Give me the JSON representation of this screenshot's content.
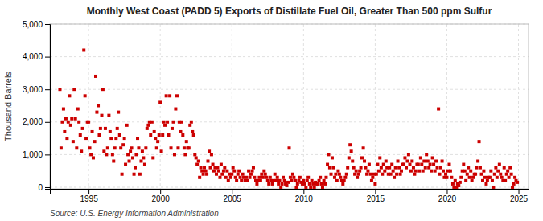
{
  "chart_data": {
    "type": "scatter",
    "title": "Monthly West Coast (PADD 5) Exports of Distillate Fuel Oil, Greater Than 500 ppm Sulfur",
    "ylabel": "Thousand Barrels",
    "annotations": [
      "Source: U.S. Energy Information Administration"
    ],
    "color": "#cc0000",
    "marker": "square",
    "grid": true,
    "xlim": [
      1992.3,
      2025.7
    ],
    "xticks": [
      1995,
      2000,
      2005,
      2010,
      2015,
      2020,
      2025
    ],
    "ylim": [
      -50,
      5000
    ],
    "yticks": [
      0,
      {
        "value": 1000,
        "label": "1,000"
      },
      {
        "value": 2000,
        "label": "2,000"
      },
      {
        "value": 3000,
        "label": "3,000"
      },
      {
        "value": 4000,
        "label": "4,000"
      },
      {
        "value": 5000,
        "label": "5,000"
      }
    ],
    "x": [
      1993.0,
      1993.08,
      1993.17,
      1993.25,
      1993.33,
      1993.42,
      1993.5,
      1993.58,
      1993.67,
      1993.75,
      1993.83,
      1993.92,
      1994.0,
      1994.08,
      1994.17,
      1994.25,
      1994.33,
      1994.42,
      1994.5,
      1994.58,
      1994.67,
      1994.75,
      1994.83,
      1994.92,
      1995.0,
      1995.08,
      1995.17,
      1995.25,
      1995.33,
      1995.42,
      1995.5,
      1995.58,
      1995.67,
      1995.75,
      1995.83,
      1995.92,
      1996.0,
      1996.08,
      1996.17,
      1996.25,
      1996.33,
      1996.42,
      1996.5,
      1996.58,
      1996.67,
      1996.75,
      1996.83,
      1996.92,
      1997.0,
      1997.08,
      1997.17,
      1997.25,
      1997.33,
      1997.42,
      1997.5,
      1997.58,
      1997.67,
      1997.75,
      1997.83,
      1997.92,
      1998.0,
      1998.08,
      1998.17,
      1998.25,
      1998.33,
      1998.42,
      1998.5,
      1998.58,
      1998.67,
      1998.75,
      1998.83,
      1998.92,
      1999.0,
      1999.08,
      1999.17,
      1999.25,
      1999.33,
      1999.42,
      1999.5,
      1999.58,
      1999.67,
      1999.75,
      1999.83,
      1999.92,
      2000.0,
      2000.08,
      2000.17,
      2000.25,
      2000.33,
      2000.42,
      2000.5,
      2000.58,
      2000.67,
      2000.75,
      2000.83,
      2000.92,
      2001.0,
      2001.08,
      2001.17,
      2001.25,
      2001.33,
      2001.42,
      2001.5,
      2001.58,
      2001.67,
      2001.75,
      2001.83,
      2001.92,
      2002.0,
      2002.08,
      2002.17,
      2002.25,
      2002.33,
      2002.42,
      2002.5,
      2002.58,
      2002.67,
      2002.75,
      2002.83,
      2002.92,
      2003.0,
      2003.08,
      2003.17,
      2003.25,
      2003.33,
      2003.42,
      2003.5,
      2003.58,
      2003.67,
      2003.75,
      2003.83,
      2003.92,
      2004.0,
      2004.08,
      2004.17,
      2004.25,
      2004.33,
      2004.42,
      2004.5,
      2004.58,
      2004.67,
      2004.75,
      2004.83,
      2004.92,
      2005.0,
      2005.08,
      2005.17,
      2005.25,
      2005.33,
      2005.42,
      2005.5,
      2005.58,
      2005.67,
      2005.75,
      2005.83,
      2005.92,
      2006.0,
      2006.08,
      2006.17,
      2006.25,
      2006.33,
      2006.42,
      2006.5,
      2006.58,
      2006.67,
      2006.75,
      2006.83,
      2006.92,
      2007.0,
      2007.08,
      2007.17,
      2007.25,
      2007.33,
      2007.42,
      2007.5,
      2007.58,
      2007.67,
      2007.75,
      2007.83,
      2007.92,
      2008.0,
      2008.08,
      2008.17,
      2008.25,
      2008.33,
      2008.42,
      2008.5,
      2008.58,
      2008.67,
      2008.75,
      2008.83,
      2008.92,
      2009.0,
      2009.08,
      2009.17,
      2009.25,
      2009.33,
      2009.42,
      2009.5,
      2009.58,
      2009.67,
      2009.75,
      2009.83,
      2009.92,
      2010.0,
      2010.08,
      2010.17,
      2010.25,
      2010.33,
      2010.42,
      2010.5,
      2010.58,
      2010.67,
      2010.75,
      2010.83,
      2010.92,
      2011.0,
      2011.08,
      2011.17,
      2011.25,
      2011.33,
      2011.42,
      2011.5,
      2011.58,
      2011.67,
      2011.75,
      2011.83,
      2011.92,
      2012.0,
      2012.08,
      2012.17,
      2012.25,
      2012.33,
      2012.42,
      2012.5,
      2012.58,
      2012.67,
      2012.75,
      2012.83,
      2012.92,
      2013.0,
      2013.08,
      2013.17,
      2013.25,
      2013.33,
      2013.42,
      2013.5,
      2013.58,
      2013.67,
      2013.75,
      2013.83,
      2013.92,
      2014.0,
      2014.08,
      2014.17,
      2014.25,
      2014.33,
      2014.42,
      2014.5,
      2014.58,
      2014.67,
      2014.75,
      2014.83,
      2014.92,
      2015.0,
      2015.08,
      2015.17,
      2015.25,
      2015.33,
      2015.42,
      2015.5,
      2015.58,
      2015.67,
      2015.75,
      2015.83,
      2015.92,
      2016.0,
      2016.08,
      2016.17,
      2016.25,
      2016.33,
      2016.42,
      2016.5,
      2016.58,
      2016.67,
      2016.75,
      2016.83,
      2016.92,
      2017.0,
      2017.08,
      2017.17,
      2017.25,
      2017.33,
      2017.42,
      2017.5,
      2017.58,
      2017.67,
      2017.75,
      2017.83,
      2017.92,
      2018.0,
      2018.08,
      2018.17,
      2018.25,
      2018.33,
      2018.42,
      2018.5,
      2018.58,
      2018.67,
      2018.75,
      2018.83,
      2018.92,
      2019.0,
      2019.08,
      2019.17,
      2019.25,
      2019.33,
      2019.42,
      2019.5,
      2019.58,
      2019.67,
      2019.75,
      2019.83,
      2019.92,
      2020.0,
      2020.08,
      2020.17,
      2020.25,
      2020.33,
      2020.42,
      2020.5,
      2020.58,
      2020.67,
      2020.75,
      2020.83,
      2020.92,
      2021.0,
      2021.08,
      2021.17,
      2021.25,
      2021.33,
      2021.42,
      2021.5,
      2021.58,
      2021.67,
      2021.75,
      2021.83,
      2021.92,
      2022.0,
      2022.08,
      2022.17,
      2022.25,
      2022.33,
      2022.42,
      2022.5,
      2022.58,
      2022.67,
      2022.75,
      2022.83,
      2022.92,
      2023.0,
      2023.08,
      2023.17,
      2023.25,
      2023.33,
      2023.42,
      2023.5,
      2023.58,
      2023.67,
      2023.75,
      2023.83,
      2023.92,
      2024.0,
      2024.08,
      2024.17,
      2024.25,
      2024.33,
      2024.42,
      2024.5,
      2024.58,
      2024.67,
      2024.75,
      2024.83,
      2024.92
    ],
    "values": [
      3000,
      1200,
      2000,
      2400,
      1700,
      2100,
      1500,
      2000,
      2800,
      1900,
      2100,
      1400,
      3000,
      2100,
      1200,
      2400,
      2000,
      1600,
      1100,
      1800,
      4200,
      2800,
      1500,
      2000,
      2000,
      1200,
      1000,
      1700,
      900,
      1400,
      3400,
      2300,
      2500,
      1600,
      1800,
      2200,
      3000,
      1100,
      1800,
      1000,
      1200,
      2200,
      1700,
      1500,
      1000,
      800,
      1200,
      1500,
      1800,
      2300,
      1600,
      1200,
      400,
      1300,
      1500,
      700,
      1900,
      1000,
      800,
      1100,
      1200,
      900,
      400,
      600,
      1000,
      1500,
      1200,
      400,
      800,
      1100,
      900,
      700,
      1200,
      1800,
      1900,
      2000,
      1600,
      2000,
      900,
      1700,
      1500,
      1200,
      1400,
      1600,
      2600,
      1100,
      1600,
      2000,
      1900,
      2800,
      2000,
      1600,
      2800,
      1200,
      1800,
      2000,
      1000,
      2400,
      2800,
      1200,
      2000,
      1700,
      2000,
      1600,
      1200,
      1000,
      1400,
      1200,
      1200,
      1900,
      2000,
      1700,
      1600,
      1000,
      900,
      700,
      800,
      300,
      600,
      500,
      400,
      600,
      500,
      400,
      800,
      1100,
      600,
      1000,
      700,
      500,
      600,
      400,
      600,
      500,
      300,
      700,
      400,
      500,
      600,
      300,
      500,
      200,
      400,
      300,
      400,
      600,
      500,
      300,
      200,
      400,
      500,
      300,
      200,
      400,
      300,
      200,
      300,
      200,
      500,
      300,
      400,
      500,
      600,
      300,
      200,
      100,
      200,
      300,
      200,
      400,
      300,
      500,
      400,
      300,
      200,
      100,
      300,
      200,
      100,
      200,
      400,
      200,
      300,
      100,
      200,
      0,
      100,
      300,
      200,
      100,
      50,
      150,
      1200,
      300,
      200,
      400,
      300,
      200,
      0,
      100,
      200,
      300,
      150,
      100,
      200,
      100,
      0,
      200,
      300,
      100,
      0,
      200,
      100,
      0,
      150,
      100,
      100,
      200,
      300,
      100,
      0,
      200,
      100,
      300,
      700,
      1000,
      600,
      400,
      900,
      600,
      300,
      400,
      200,
      500,
      400,
      300,
      200,
      100,
      200,
      300,
      400,
      600,
      900,
      1300,
      1100,
      800,
      600,
      400,
      500,
      300,
      400,
      500,
      600,
      900,
      1200,
      800,
      600,
      400,
      500,
      700,
      400,
      200,
      300,
      400,
      100,
      400,
      700,
      500,
      900,
      600,
      400,
      700,
      500,
      800,
      600,
      400,
      600,
      400,
      700,
      500,
      300,
      600,
      400,
      800,
      600,
      400,
      500,
      700,
      700,
      900,
      600,
      800,
      1000,
      700,
      500,
      800,
      600,
      400,
      500,
      700,
      700,
      500,
      900,
      700,
      500,
      800,
      600,
      1000,
      800,
      600,
      700,
      500,
      900,
      700,
      500,
      800,
      600,
      2400,
      400,
      600,
      800,
      500,
      300,
      400,
      300,
      500,
      700,
      500,
      300,
      100,
      0,
      200,
      0,
      100,
      50,
      150,
      300,
      500,
      700,
      500,
      200,
      400,
      600,
      300,
      500,
      200,
      300,
      400,
      400,
      600,
      800,
      1400,
      600,
      400,
      200,
      500,
      300,
      100,
      200,
      300,
      300,
      500,
      200,
      0,
      400,
      600,
      300,
      500,
      700,
      400,
      300,
      200,
      600,
      200,
      400,
      500,
      300,
      600,
      400,
      0,
      100,
      300,
      200,
      150
    ]
  }
}
